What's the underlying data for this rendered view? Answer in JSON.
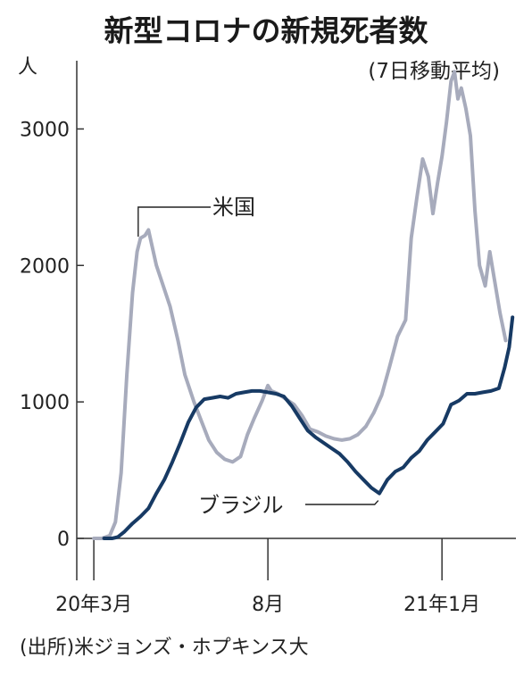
{
  "chart_data": {
    "type": "line",
    "title": "新型コロナの新規死者数",
    "subtitle": "(7日移動平均)",
    "ylabel": "人",
    "ylim": [
      0,
      3500
    ],
    "yticks": [
      0,
      1000,
      2000,
      3000
    ],
    "xlim": [
      "2020-02-15",
      "2021-03-07"
    ],
    "xticks": [
      {
        "label": "20年3月",
        "date": "2020-03-01"
      },
      {
        "label": "8月",
        "date": "2020-08-01"
      },
      {
        "label": "21年1月",
        "date": "2021-01-01"
      }
    ],
    "grid": false,
    "source": "(出所)米ジョンズ・ホプキンス大",
    "series": [
      {
        "name": "米国",
        "color": "#a7abbc",
        "points": [
          [
            "2020-03-01",
            0
          ],
          [
            "2020-03-08",
            0
          ],
          [
            "2020-03-15",
            20
          ],
          [
            "2020-03-20",
            120
          ],
          [
            "2020-03-25",
            480
          ],
          [
            "2020-03-30",
            1200
          ],
          [
            "2020-04-04",
            1800
          ],
          [
            "2020-04-08",
            2100
          ],
          [
            "2020-04-11",
            2200
          ],
          [
            "2020-04-15",
            2220
          ],
          [
            "2020-04-18",
            2260
          ],
          [
            "2020-04-21",
            2150
          ],
          [
            "2020-04-25",
            2000
          ],
          [
            "2020-05-01",
            1850
          ],
          [
            "2020-05-07",
            1700
          ],
          [
            "2020-05-14",
            1450
          ],
          [
            "2020-05-20",
            1200
          ],
          [
            "2020-05-28",
            1000
          ],
          [
            "2020-06-04",
            850
          ],
          [
            "2020-06-10",
            720
          ],
          [
            "2020-06-17",
            630
          ],
          [
            "2020-06-24",
            580
          ],
          [
            "2020-07-01",
            560
          ],
          [
            "2020-07-08",
            600
          ],
          [
            "2020-07-14",
            760
          ],
          [
            "2020-07-20",
            880
          ],
          [
            "2020-07-27",
            1010
          ],
          [
            "2020-08-01",
            1120
          ],
          [
            "2020-08-04",
            1080
          ],
          [
            "2020-08-10",
            1060
          ],
          [
            "2020-08-17",
            1020
          ],
          [
            "2020-08-24",
            980
          ],
          [
            "2020-08-31",
            900
          ],
          [
            "2020-09-07",
            800
          ],
          [
            "2020-09-14",
            780
          ],
          [
            "2020-09-21",
            750
          ],
          [
            "2020-09-28",
            730
          ],
          [
            "2020-10-05",
            720
          ],
          [
            "2020-10-12",
            730
          ],
          [
            "2020-10-19",
            760
          ],
          [
            "2020-10-26",
            820
          ],
          [
            "2020-11-02",
            920
          ],
          [
            "2020-11-09",
            1050
          ],
          [
            "2020-11-16",
            1260
          ],
          [
            "2020-11-23",
            1480
          ],
          [
            "2020-11-30",
            1600
          ],
          [
            "2020-12-05",
            2200
          ],
          [
            "2020-12-10",
            2500
          ],
          [
            "2020-12-15",
            2780
          ],
          [
            "2020-12-20",
            2650
          ],
          [
            "2020-12-24",
            2380
          ],
          [
            "2020-12-28",
            2600
          ],
          [
            "2021-01-01",
            2800
          ],
          [
            "2021-01-05",
            3050
          ],
          [
            "2021-01-09",
            3350
          ],
          [
            "2021-01-12",
            3420
          ],
          [
            "2021-01-15",
            3220
          ],
          [
            "2021-01-18",
            3300
          ],
          [
            "2021-01-22",
            3150
          ],
          [
            "2021-01-26",
            2950
          ],
          [
            "2021-01-30",
            2400
          ],
          [
            "2021-02-03",
            2000
          ],
          [
            "2021-02-08",
            1850
          ],
          [
            "2021-02-12",
            2100
          ],
          [
            "2021-02-16",
            1900
          ],
          [
            "2021-02-21",
            1650
          ],
          [
            "2021-02-26",
            1450
          ]
        ]
      },
      {
        "name": "ブラジル",
        "color": "#173a64",
        "points": [
          [
            "2020-03-10",
            0
          ],
          [
            "2020-03-17",
            0
          ],
          [
            "2020-03-22",
            10
          ],
          [
            "2020-03-28",
            50
          ],
          [
            "2020-04-04",
            110
          ],
          [
            "2020-04-11",
            160
          ],
          [
            "2020-04-18",
            220
          ],
          [
            "2020-04-25",
            330
          ],
          [
            "2020-05-02",
            430
          ],
          [
            "2020-05-09",
            560
          ],
          [
            "2020-05-16",
            700
          ],
          [
            "2020-05-23",
            850
          ],
          [
            "2020-05-30",
            960
          ],
          [
            "2020-06-06",
            1020
          ],
          [
            "2020-06-13",
            1030
          ],
          [
            "2020-06-20",
            1040
          ],
          [
            "2020-06-27",
            1030
          ],
          [
            "2020-07-04",
            1060
          ],
          [
            "2020-07-11",
            1070
          ],
          [
            "2020-07-18",
            1080
          ],
          [
            "2020-07-25",
            1080
          ],
          [
            "2020-08-01",
            1070
          ],
          [
            "2020-08-08",
            1060
          ],
          [
            "2020-08-15",
            1040
          ],
          [
            "2020-08-22",
            970
          ],
          [
            "2020-08-29",
            880
          ],
          [
            "2020-09-05",
            790
          ],
          [
            "2020-09-12",
            740
          ],
          [
            "2020-09-19",
            700
          ],
          [
            "2020-09-26",
            660
          ],
          [
            "2020-10-03",
            620
          ],
          [
            "2020-10-10",
            560
          ],
          [
            "2020-10-17",
            490
          ],
          [
            "2020-10-24",
            430
          ],
          [
            "2020-10-31",
            370
          ],
          [
            "2020-11-07",
            330
          ],
          [
            "2020-11-14",
            430
          ],
          [
            "2020-11-21",
            490
          ],
          [
            "2020-11-28",
            520
          ],
          [
            "2020-12-05",
            590
          ],
          [
            "2020-12-12",
            640
          ],
          [
            "2020-12-19",
            720
          ],
          [
            "2020-12-26",
            780
          ],
          [
            "2021-01-02",
            840
          ],
          [
            "2021-01-09",
            980
          ],
          [
            "2021-01-16",
            1010
          ],
          [
            "2021-01-23",
            1060
          ],
          [
            "2021-01-30",
            1060
          ],
          [
            "2021-02-06",
            1070
          ],
          [
            "2021-02-13",
            1080
          ],
          [
            "2021-02-20",
            1100
          ],
          [
            "2021-02-25",
            1250
          ],
          [
            "2021-03-01",
            1400
          ],
          [
            "2021-03-04",
            1620
          ]
        ]
      }
    ],
    "annotations": [
      {
        "text": "米国",
        "series": "米国",
        "date": "2020-04-09",
        "value": 2210
      },
      {
        "text": "ブラジル",
        "series": "ブラジル",
        "date": "2020-11-06",
        "value": 330
      }
    ]
  }
}
